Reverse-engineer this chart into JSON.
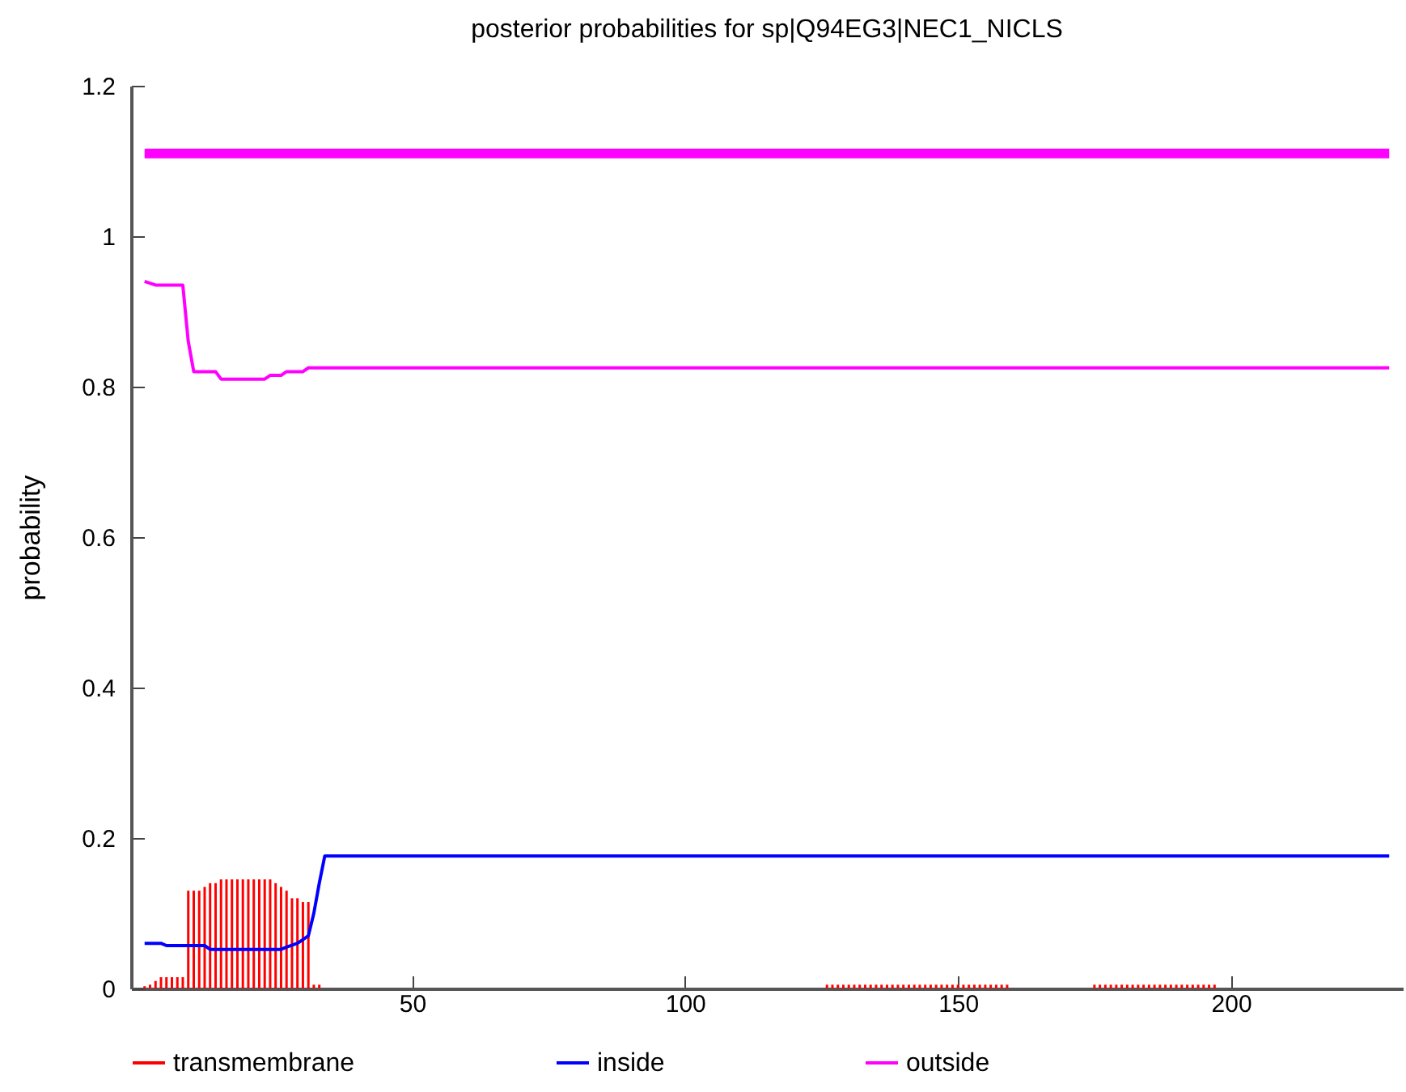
{
  "chart_data": {
    "type": "line",
    "title": "posterior probabilities for sp|Q94EG3|NEC1_NICLS",
    "ylabel": "probability",
    "xlim": [
      0,
      230
    ],
    "xticks": [
      50,
      100,
      150,
      200
    ],
    "ylim": [
      0,
      1.2
    ],
    "yticks": [
      0,
      0.2,
      0.4,
      0.6,
      0.8,
      1,
      1.2
    ],
    "grid": false,
    "legend": "bottom",
    "series": [
      {
        "name": "transmembrane",
        "type": "bar",
        "color": "#ff0000",
        "x": [
          1,
          2,
          3,
          4,
          5,
          6,
          7,
          8,
          9,
          10,
          11,
          12,
          13,
          14,
          15,
          16,
          17,
          18,
          19,
          20,
          21,
          22,
          23,
          24,
          25,
          26,
          27,
          28,
          29,
          30,
          31,
          32,
          33,
          126,
          127,
          128,
          129,
          130,
          131,
          132,
          133,
          134,
          135,
          136,
          137,
          138,
          139,
          140,
          141,
          142,
          143,
          144,
          145,
          146,
          147,
          148,
          149,
          150,
          151,
          152,
          153,
          154,
          155,
          156,
          157,
          158,
          159,
          175,
          176,
          177,
          178,
          179,
          180,
          181,
          182,
          183,
          184,
          185,
          186,
          187,
          188,
          189,
          190,
          191,
          192,
          193,
          194,
          195,
          196,
          197
        ],
        "values": [
          0.003,
          0.005,
          0.01,
          0.015,
          0.015,
          0.015,
          0.015,
          0.015,
          0.13,
          0.13,
          0.13,
          0.135,
          0.14,
          0.14,
          0.145,
          0.145,
          0.145,
          0.145,
          0.145,
          0.145,
          0.145,
          0.145,
          0.145,
          0.145,
          0.14,
          0.135,
          0.13,
          0.12,
          0.12,
          0.115,
          0.115,
          0.005,
          0.005,
          0.005,
          0.005,
          0.005,
          0.005,
          0.005,
          0.005,
          0.005,
          0.005,
          0.005,
          0.005,
          0.005,
          0.005,
          0.005,
          0.005,
          0.005,
          0.005,
          0.005,
          0.005,
          0.005,
          0.005,
          0.005,
          0.005,
          0.005,
          0.005,
          0.005,
          0.005,
          0.005,
          0.005,
          0.005,
          0.005,
          0.005,
          0.005,
          0.005,
          0.005,
          0.005,
          0.005,
          0.005,
          0.005,
          0.005,
          0.005,
          0.005,
          0.005,
          0.005,
          0.005,
          0.005,
          0.005,
          0.005,
          0.005,
          0.005,
          0.005,
          0.005,
          0.005,
          0.005,
          0.005,
          0.005,
          0.005,
          0.005
        ]
      },
      {
        "name": "inside",
        "color": "#0000ff",
        "x": [
          1,
          4,
          5,
          12,
          13,
          26,
          27,
          29,
          30,
          31,
          32,
          33,
          34,
          229
        ],
        "values": [
          0.06,
          0.06,
          0.057,
          0.057,
          0.052,
          0.052,
          0.055,
          0.06,
          0.065,
          0.07,
          0.1,
          0.14,
          0.176,
          0.176
        ]
      },
      {
        "name": "outside",
        "color": "#ff00ff",
        "x": [
          1,
          3,
          8,
          9,
          10,
          14,
          15,
          23,
          24,
          26,
          27,
          30,
          31,
          229
        ],
        "values": [
          0.94,
          0.935,
          0.935,
          0.86,
          0.82,
          0.82,
          0.81,
          0.81,
          0.815,
          0.815,
          0.82,
          0.82,
          0.825,
          0.825
        ]
      },
      {
        "color": "#ff00ff",
        "x": [
          1,
          229
        ],
        "values": [
          1.11,
          1.11
        ]
      }
    ]
  }
}
